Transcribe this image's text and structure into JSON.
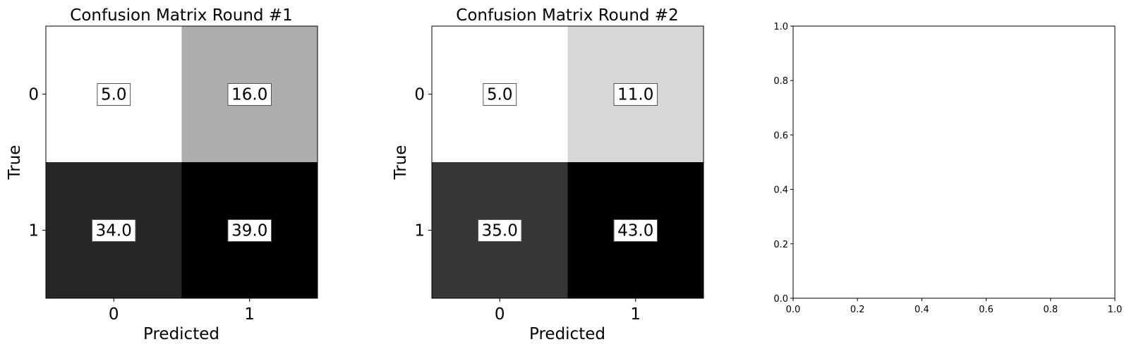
{
  "chart_data": [
    {
      "type": "heatmap",
      "title": "Confusion Matrix Round #1",
      "xlabel": "Predicted",
      "ylabel": "True",
      "x_categories": [
        "0",
        "1"
      ],
      "y_categories": [
        "0",
        "1"
      ],
      "values": [
        [
          5.0,
          16.0
        ],
        [
          34.0,
          39.0
        ]
      ],
      "value_labels": [
        [
          "5.0",
          "16.0"
        ],
        [
          "34.0",
          "39.0"
        ]
      ],
      "colormap": "Greys",
      "grid": false
    },
    {
      "type": "heatmap",
      "title": "Confusion Matrix Round #2",
      "xlabel": "Predicted",
      "ylabel": "True",
      "x_categories": [
        "0",
        "1"
      ],
      "y_categories": [
        "0",
        "1"
      ],
      "values": [
        [
          5.0,
          11.0
        ],
        [
          35.0,
          43.0
        ]
      ],
      "value_labels": [
        [
          "5.0",
          "11.0"
        ],
        [
          "35.0",
          "43.0"
        ]
      ],
      "colormap": "Greys",
      "grid": false
    },
    {
      "type": "scatter",
      "title": "",
      "xlabel": "",
      "ylabel": "",
      "xlim": [
        0.0,
        1.0
      ],
      "ylim": [
        0.0,
        1.0
      ],
      "x_ticks": [
        "0.0",
        "0.2",
        "0.4",
        "0.6",
        "0.8",
        "1.0"
      ],
      "y_ticks": [
        "0.0",
        "0.2",
        "0.4",
        "0.6",
        "0.8",
        "1.0"
      ],
      "series": [],
      "grid": false
    }
  ]
}
